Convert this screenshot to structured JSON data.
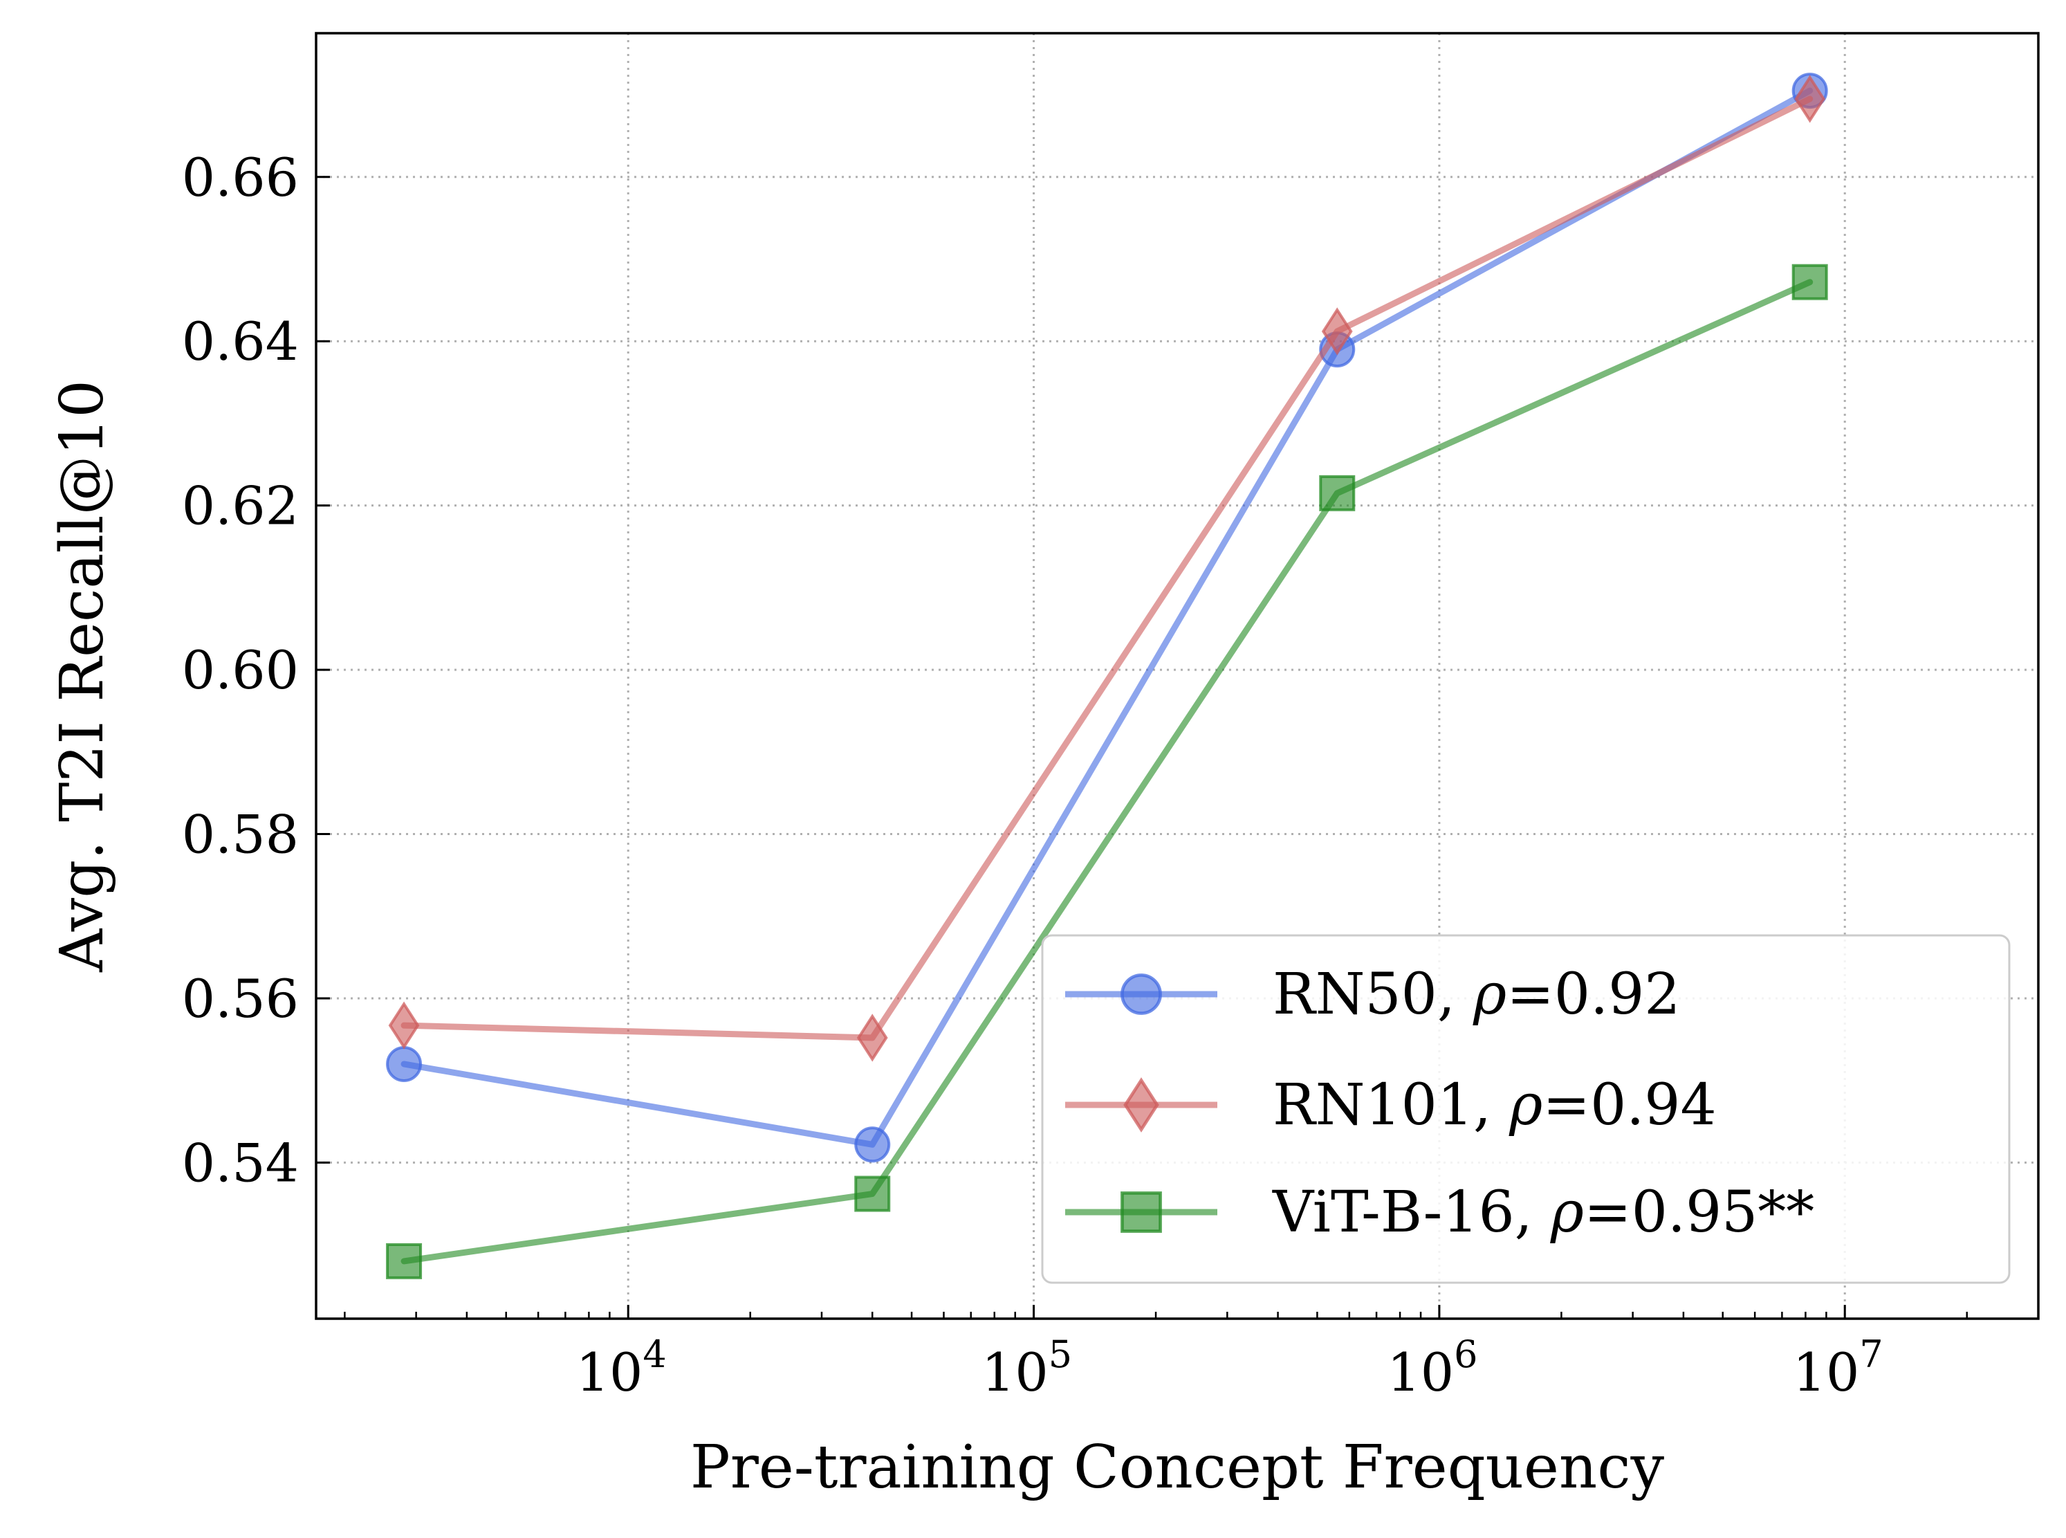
{
  "chart_data": {
    "type": "line",
    "xlabel": "Pre-training Concept Frequency",
    "ylabel": "Avg. T2I Recall@10",
    "x_scale": "log",
    "xlim": [
      1700,
      30000000
    ],
    "ylim": [
      0.521,
      0.6775
    ],
    "grid": true,
    "legend_position": "lower-right",
    "x_ticks": [
      {
        "value": 10000,
        "base": "10",
        "exp": "4"
      },
      {
        "value": 100000,
        "base": "10",
        "exp": "5"
      },
      {
        "value": 1000000,
        "base": "10",
        "exp": "6"
      },
      {
        "value": 10000000,
        "base": "10",
        "exp": "7"
      }
    ],
    "y_ticks": [
      {
        "value": 0.54,
        "label": "0.54"
      },
      {
        "value": 0.56,
        "label": "0.56"
      },
      {
        "value": 0.58,
        "label": "0.58"
      },
      {
        "value": 0.6,
        "label": "0.60"
      },
      {
        "value": 0.62,
        "label": "0.62"
      },
      {
        "value": 0.64,
        "label": "0.64"
      },
      {
        "value": 0.66,
        "label": "0.66"
      }
    ],
    "series": [
      {
        "name": "RN50",
        "rho_value": "0.92",
        "rho_suffix": "",
        "color": "#4169E1",
        "marker": "circle",
        "x": [
          2800,
          40000,
          560000,
          8200000
        ],
        "y": [
          0.552,
          0.5422,
          0.639,
          0.6705
        ]
      },
      {
        "name": "RN101",
        "rho_value": "0.94",
        "rho_suffix": "",
        "color": "#CD5C5C",
        "marker": "diamond",
        "x": [
          2800,
          40000,
          560000,
          8200000
        ],
        "y": [
          0.5567,
          0.5552,
          0.6412,
          0.6695
        ]
      },
      {
        "name": "ViT-B-16",
        "rho_value": "0.95",
        "rho_suffix": "**",
        "color": "#228B22",
        "marker": "square",
        "x": [
          2800,
          40000,
          560000,
          8200000
        ],
        "y": [
          0.528,
          0.5362,
          0.6215,
          0.6472
        ]
      }
    ]
  }
}
